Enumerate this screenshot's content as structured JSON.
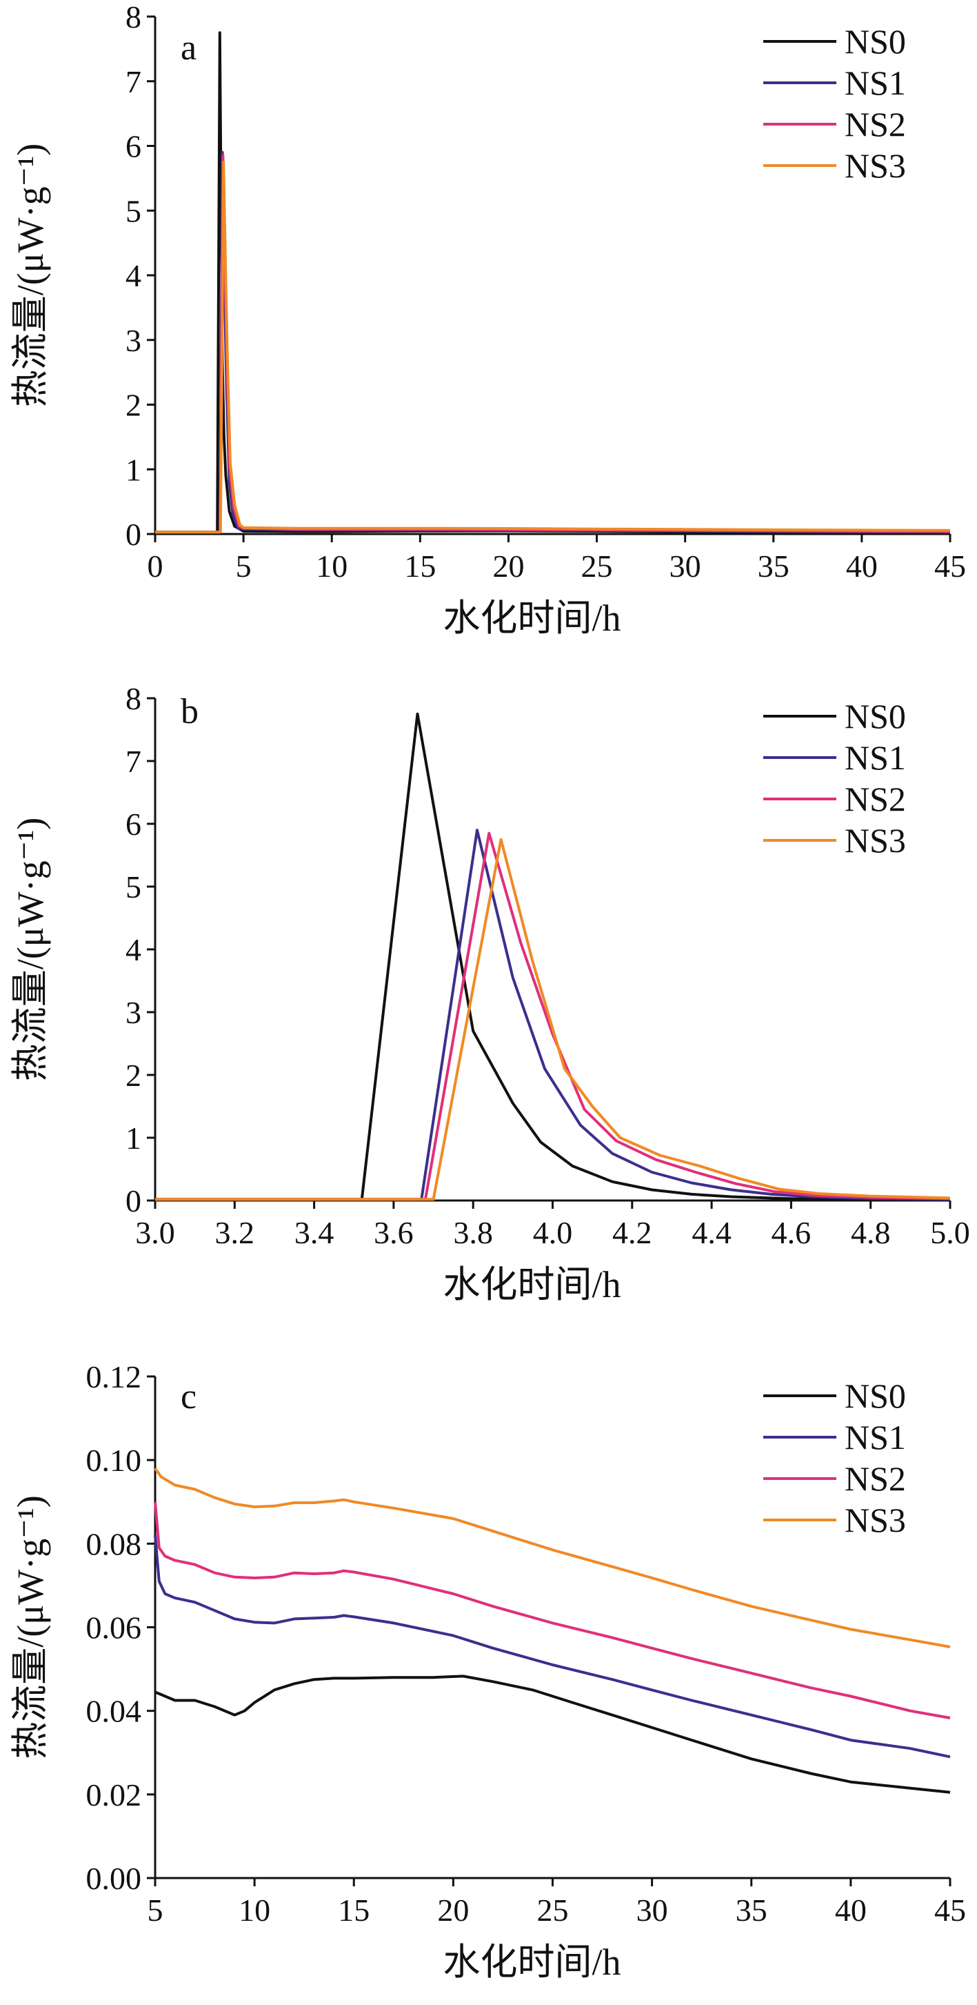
{
  "chart_data": [
    {
      "type": "line",
      "panel_label": "a",
      "xlabel": "水化时间/h",
      "ylabel": "热流量/(μW·g⁻¹)",
      "xlim": [
        0,
        45
      ],
      "ylim": [
        0,
        8
      ],
      "xticks": [
        "0",
        "5",
        "10",
        "15",
        "20",
        "25",
        "30",
        "35",
        "40",
        "45"
      ],
      "yticks": [
        "0",
        "1",
        "2",
        "3",
        "4",
        "5",
        "6",
        "7",
        "8"
      ],
      "legend_position": "top-right",
      "series": [
        {
          "name": "NS0",
          "color": "#111111",
          "x": [
            0,
            3.5,
            3.52,
            3.66,
            3.8,
            3.9,
            4.0,
            4.2,
            4.5,
            5,
            8,
            10,
            15,
            20,
            25,
            30,
            35,
            40,
            45
          ],
          "y": [
            0.03,
            0.03,
            0.03,
            7.75,
            2.7,
            1.5,
            0.9,
            0.35,
            0.12,
            0.044,
            0.04,
            0.041,
            0.047,
            0.048,
            0.043,
            0.036,
            0.029,
            0.024,
            0.02
          ]
        },
        {
          "name": "NS1",
          "color": "#3b2f8e",
          "x": [
            0,
            3.65,
            3.67,
            3.81,
            3.95,
            4.05,
            4.2,
            4.4,
            4.7,
            5,
            8,
            10,
            15,
            20,
            25,
            30,
            35,
            40,
            45
          ],
          "y": [
            0.03,
            0.03,
            0.03,
            5.9,
            3.5,
            2.2,
            0.8,
            0.3,
            0.09,
            0.075,
            0.063,
            0.061,
            0.062,
            0.057,
            0.051,
            0.045,
            0.039,
            0.034,
            0.029
          ]
        },
        {
          "name": "NS2",
          "color": "#e0307a",
          "x": [
            0,
            3.65,
            3.68,
            3.84,
            3.98,
            4.08,
            4.22,
            4.45,
            4.75,
            5,
            8,
            10,
            15,
            20,
            25,
            30,
            35,
            40,
            45
          ],
          "y": [
            0.03,
            0.03,
            0.03,
            5.85,
            3.8,
            2.5,
            1.0,
            0.4,
            0.12,
            0.09,
            0.073,
            0.072,
            0.072,
            0.067,
            0.061,
            0.055,
            0.049,
            0.043,
            0.038
          ]
        },
        {
          "name": "NS3",
          "color": "#f08a24",
          "x": [
            0,
            3.67,
            3.7,
            3.87,
            4.0,
            4.1,
            4.25,
            4.5,
            4.8,
            5,
            8,
            10,
            15,
            20,
            25,
            30,
            35,
            40,
            45
          ],
          "y": [
            0.03,
            0.03,
            0.03,
            5.75,
            3.9,
            2.6,
            1.1,
            0.45,
            0.14,
            0.098,
            0.089,
            0.088,
            0.089,
            0.085,
            0.078,
            0.071,
            0.065,
            0.06,
            0.055
          ]
        }
      ]
    },
    {
      "type": "line",
      "panel_label": "b",
      "xlabel": "水化时间/h",
      "ylabel": "热流量/(μW·g⁻¹)",
      "xlim": [
        3.0,
        5.0
      ],
      "ylim": [
        0,
        8
      ],
      "xticks": [
        "3.0",
        "3.2",
        "3.4",
        "3.6",
        "3.8",
        "4.0",
        "4.2",
        "4.4",
        "4.6",
        "4.8",
        "5.0"
      ],
      "yticks": [
        "0",
        "1",
        "2",
        "3",
        "4",
        "5",
        "6",
        "7",
        "8"
      ],
      "legend_position": "top-right",
      "series": [
        {
          "name": "NS0",
          "color": "#111111",
          "x": [
            3.0,
            3.5,
            3.52,
            3.66,
            3.8,
            3.9,
            3.97,
            4.05,
            4.15,
            4.25,
            4.35,
            4.45,
            4.6,
            4.8,
            5.0
          ],
          "y": [
            0.02,
            0.02,
            0.02,
            7.75,
            2.7,
            1.55,
            0.93,
            0.55,
            0.3,
            0.17,
            0.1,
            0.06,
            0.03,
            0.02,
            0.02
          ]
        },
        {
          "name": "NS1",
          "color": "#3b2f8e",
          "x": [
            3.0,
            3.65,
            3.67,
            3.81,
            3.9,
            3.98,
            4.07,
            4.15,
            4.25,
            4.35,
            4.45,
            4.55,
            4.65,
            4.8,
            5.0
          ],
          "y": [
            0.02,
            0.02,
            0.02,
            5.9,
            3.55,
            2.1,
            1.2,
            0.75,
            0.45,
            0.28,
            0.17,
            0.1,
            0.06,
            0.03,
            0.02
          ]
        },
        {
          "name": "NS2",
          "color": "#e0307a",
          "x": [
            3.0,
            3.66,
            3.68,
            3.84,
            3.92,
            4.0,
            4.08,
            4.16,
            4.26,
            4.36,
            4.46,
            4.56,
            4.66,
            4.8,
            5.0
          ],
          "y": [
            0.02,
            0.02,
            0.02,
            5.85,
            4.1,
            2.65,
            1.45,
            0.95,
            0.65,
            0.45,
            0.27,
            0.14,
            0.08,
            0.05,
            0.03
          ]
        },
        {
          "name": "NS3",
          "color": "#f08a24",
          "x": [
            3.0,
            3.67,
            3.7,
            3.87,
            3.95,
            4.03,
            4.1,
            4.17,
            4.27,
            4.37,
            4.47,
            4.57,
            4.67,
            4.8,
            5.0
          ],
          "y": [
            0.02,
            0.02,
            0.02,
            5.75,
            3.8,
            2.1,
            1.5,
            1.0,
            0.72,
            0.55,
            0.35,
            0.18,
            0.11,
            0.07,
            0.04
          ]
        }
      ]
    },
    {
      "type": "line",
      "panel_label": "c",
      "xlabel": "水化时间/h",
      "ylabel": "热流量/(μW·g⁻¹)",
      "xlim": [
        5,
        45
      ],
      "ylim": [
        0,
        0.12
      ],
      "xticks": [
        "5",
        "10",
        "15",
        "20",
        "25",
        "30",
        "35",
        "40",
        "45"
      ],
      "yticks": [
        "0.00",
        "0.02",
        "0.04",
        "0.06",
        "0.08",
        "0.10",
        "0.12"
      ],
      "legend_position": "top-right",
      "series": [
        {
          "name": "NS0",
          "color": "#111111",
          "x": [
            5,
            6,
            7,
            8,
            9,
            9.5,
            10,
            11,
            12,
            13,
            14,
            15,
            17,
            19,
            20.5,
            22,
            24,
            26,
            28,
            30,
            32,
            35,
            38,
            40,
            43,
            45
          ],
          "y": [
            0.0445,
            0.0425,
            0.0425,
            0.041,
            0.039,
            0.04,
            0.042,
            0.045,
            0.0465,
            0.0475,
            0.0478,
            0.0478,
            0.048,
            0.048,
            0.0483,
            0.047,
            0.045,
            0.042,
            0.039,
            0.036,
            0.033,
            0.0285,
            0.025,
            0.023,
            0.0215,
            0.0205
          ]
        },
        {
          "name": "NS1",
          "color": "#3b2f8e",
          "x": [
            5,
            5.2,
            5.5,
            6,
            7,
            8,
            9,
            10,
            11,
            12,
            13,
            14,
            14.5,
            15,
            17,
            20,
            22,
            25,
            28,
            30,
            32,
            35,
            38,
            40,
            43,
            45
          ],
          "y": [
            0.082,
            0.071,
            0.068,
            0.067,
            0.066,
            0.064,
            0.062,
            0.0612,
            0.061,
            0.062,
            0.0622,
            0.0624,
            0.0628,
            0.0625,
            0.061,
            0.058,
            0.055,
            0.051,
            0.0475,
            0.045,
            0.0425,
            0.039,
            0.0355,
            0.033,
            0.031,
            0.029
          ]
        },
        {
          "name": "NS2",
          "color": "#e0307a",
          "x": [
            5,
            5.2,
            5.5,
            6,
            7,
            8,
            9,
            10,
            11,
            12,
            13,
            14,
            14.5,
            15,
            17,
            20,
            22,
            25,
            28,
            30,
            32,
            35,
            38,
            40,
            43,
            45
          ],
          "y": [
            0.09,
            0.079,
            0.077,
            0.076,
            0.075,
            0.073,
            0.072,
            0.0718,
            0.072,
            0.073,
            0.0728,
            0.073,
            0.0735,
            0.0732,
            0.0715,
            0.068,
            0.065,
            0.061,
            0.0575,
            0.055,
            0.0525,
            0.049,
            0.0455,
            0.0435,
            0.04,
            0.0383
          ]
        },
        {
          "name": "NS3",
          "color": "#f08a24",
          "x": [
            5,
            5.3,
            6,
            7,
            8,
            9,
            10,
            11,
            12,
            13,
            14,
            14.5,
            15,
            17,
            20,
            22,
            25,
            28,
            30,
            32,
            35,
            38,
            40,
            43,
            45
          ],
          "y": [
            0.098,
            0.096,
            0.094,
            0.093,
            0.091,
            0.0895,
            0.0888,
            0.089,
            0.0898,
            0.0898,
            0.0902,
            0.0905,
            0.09,
            0.0885,
            0.086,
            0.083,
            0.0785,
            0.0745,
            0.0718,
            0.069,
            0.065,
            0.0617,
            0.0595,
            0.057,
            0.0553
          ]
        }
      ]
    }
  ]
}
